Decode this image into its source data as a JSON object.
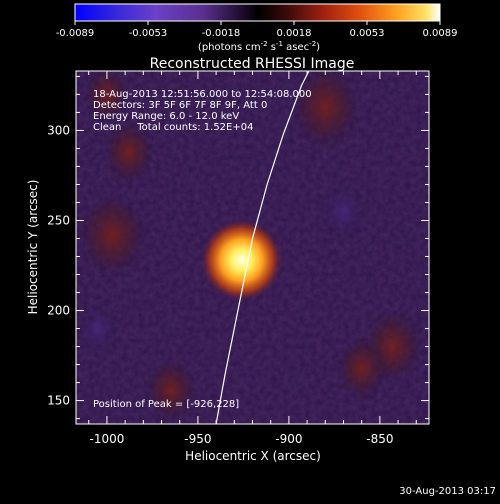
{
  "chart_data": {
    "type": "heatmap",
    "title": "Reconstructed RHESSI Image",
    "xlabel": "Heliocentric X (arcsec)",
    "ylabel": "Heliocentric Y (arcsec)",
    "xlim": [
      -1017,
      -823
    ],
    "ylim": [
      137,
      333
    ],
    "xticks": [
      -1000,
      -950,
      -900,
      -850
    ],
    "yticks": [
      150,
      200,
      250,
      300
    ],
    "colorbar": {
      "min": -0.0089,
      "max": 0.0089,
      "ticks": [
        "-0.0089",
        "-0.0053",
        "-0.0018",
        "0.0018",
        "0.0053",
        "0.0089"
      ],
      "units_text": "(photons cm",
      "units_exp1": "-2",
      "units_mid": " s",
      "units_exp2": "-1",
      "units_mid2": " asec",
      "units_exp3": "-2",
      "units_close": ")",
      "colors": [
        "#0000ff",
        "#5a3bd0",
        "#7a4abf",
        "#2a1540",
        "#000000",
        "#6a1a10",
        "#c03a10",
        "#ff8c10",
        "#ffd840",
        "#ffffff"
      ]
    },
    "annotations": [
      "18-Aug-2013 12:51:56.000 to 12:54:08.000",
      "Detectors: 3F 5F 6F 7F 8F 9F, Att 0",
      "Energy Range: 6.0 - 12.0 keV",
      "Clean     Total counts: 1.52E+04"
    ],
    "peak_label": "Position of Peak = [-926,228]",
    "peak": {
      "x": -926,
      "y": 228
    },
    "limb_curve": {
      "x": [
        -940,
        -935,
        -928,
        -920,
        -912,
        -903,
        -893,
        -883
      ],
      "y": [
        137,
        165,
        200,
        240,
        270,
        298,
        325,
        345
      ]
    },
    "blobs": [
      {
        "x": -926,
        "y": 228,
        "value": 0.0089,
        "kind": "peak"
      },
      {
        "x": -880,
        "y": 313,
        "value": 0.0025,
        "kind": "warm"
      },
      {
        "x": -997,
        "y": 242,
        "value": 0.0025,
        "kind": "warm"
      },
      {
        "x": -988,
        "y": 288,
        "value": 0.0015,
        "kind": "warm"
      },
      {
        "x": -965,
        "y": 156,
        "value": 0.0015,
        "kind": "warm"
      },
      {
        "x": -843,
        "y": 180,
        "value": 0.002,
        "kind": "warm"
      },
      {
        "x": -860,
        "y": 168,
        "value": 0.0015,
        "kind": "warm"
      },
      {
        "x": -870,
        "y": 255,
        "value": -0.0015,
        "kind": "cool"
      },
      {
        "x": -1005,
        "y": 190,
        "value": -0.0012,
        "kind": "cool"
      },
      {
        "x": -1000,
        "y": 320,
        "value": 0.0012,
        "kind": "warm"
      }
    ]
  },
  "footer": {
    "timestamp": "30-Aug-2013 03:17"
  }
}
